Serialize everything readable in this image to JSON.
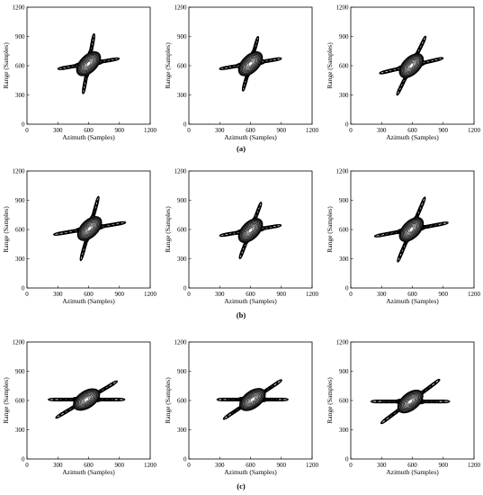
{
  "figure": {
    "row_labels": [
      "(a)",
      "(b)",
      "(c)"
    ]
  },
  "chart_data": [
    {
      "panel": "a1",
      "type": "contour",
      "xlabel": "Azimuth (Samples)",
      "ylabel": "Range (Samples)",
      "xlim": [
        0,
        1200
      ],
      "ylim": [
        0,
        1200
      ],
      "xticks": [
        0,
        300,
        600,
        900,
        1200
      ],
      "yticks": [
        0,
        300,
        600,
        900,
        1200
      ],
      "center": [
        600,
        620
      ],
      "peak_orientations_deg": [
        10,
        80
      ],
      "peak_lengths": [
        470,
        480
      ],
      "sidelobe_extent_pairs": [
        [
          210,
          30
        ]
      ]
    },
    {
      "panel": "a2",
      "type": "contour",
      "xlabel": "Azimuth (Samples)",
      "ylabel": "Range (Samples)",
      "xlim": [
        0,
        1200
      ],
      "ylim": [
        0,
        1200
      ],
      "xticks": [
        0,
        300,
        600,
        900,
        1200
      ],
      "yticks": [
        0,
        300,
        600,
        900,
        1200
      ],
      "center": [
        600,
        620
      ],
      "peak_orientations_deg": [
        10,
        75
      ],
      "peak_lengths": [
        480,
        440
      ],
      "sidelobe_extent_pairs": [
        [
          200,
          30
        ]
      ]
    },
    {
      "panel": "a3",
      "type": "contour",
      "xlabel": "Azimuth (Samples)",
      "ylabel": "Range (Samples)",
      "xlim": [
        0,
        1200
      ],
      "ylim": [
        0,
        1200
      ],
      "xticks": [
        0,
        300,
        600,
        900,
        1200
      ],
      "yticks": [
        0,
        300,
        600,
        900,
        1200
      ],
      "center": [
        590,
        600
      ],
      "peak_orientations_deg": [
        14,
        65
      ],
      "peak_lengths": [
        500,
        520
      ],
      "sidelobe_extent_pairs": [
        [
          220,
          30
        ]
      ]
    },
    {
      "panel": "b1",
      "type": "contour",
      "xlabel": "Azimuth (Samples)",
      "ylabel": "Range (Samples)",
      "xlim": [
        0,
        1200
      ],
      "ylim": [
        0,
        1200
      ],
      "xticks": [
        0,
        300,
        600,
        900,
        1200
      ],
      "yticks": [
        0,
        300,
        600,
        900,
        1200
      ],
      "center": [
        610,
        610
      ],
      "peak_orientations_deg": [
        10,
        75
      ],
      "peak_lengths": [
        560,
        520
      ],
      "sidelobe_extent_pairs": [
        [
          260,
          40
        ]
      ]
    },
    {
      "panel": "b2",
      "type": "contour",
      "xlabel": "Azimuth (Samples)",
      "ylabel": "Range (Samples)",
      "xlim": [
        0,
        1200
      ],
      "ylim": [
        0,
        1200
      ],
      "xticks": [
        0,
        300,
        600,
        900,
        1200
      ],
      "yticks": [
        0,
        300,
        600,
        900,
        1200
      ],
      "center": [
        600,
        590
      ],
      "peak_orientations_deg": [
        10,
        70
      ],
      "peak_lengths": [
        480,
        480
      ],
      "sidelobe_extent_pairs": [
        [
          190,
          30
        ]
      ]
    },
    {
      "panel": "b3",
      "type": "contour",
      "xlabel": "Azimuth (Samples)",
      "ylabel": "Range (Samples)",
      "xlim": [
        0,
        1200
      ],
      "ylim": [
        0,
        1200
      ],
      "xticks": [
        0,
        300,
        600,
        900,
        1200
      ],
      "yticks": [
        0,
        300,
        600,
        900,
        1200
      ],
      "center": [
        590,
        600
      ],
      "peak_orientations_deg": [
        11,
        68
      ],
      "peak_lengths": [
        580,
        560
      ],
      "sidelobe_extent_pairs": [
        [
          250,
          40
        ]
      ]
    },
    {
      "panel": "c1",
      "type": "contour",
      "xlabel": "Azimuth (Samples)",
      "ylabel": "Range (Samples)",
      "xlim": [
        0,
        1200
      ],
      "ylim": [
        0,
        1200
      ],
      "xticks": [
        0,
        300,
        600,
        900,
        1200
      ],
      "yticks": [
        0,
        300,
        600,
        900,
        1200
      ],
      "center": [
        580,
        610
      ],
      "peak_orientations_deg": [
        0,
        32
      ],
      "peak_lengths": [
        600,
        560
      ],
      "sidelobe_extent_pairs": [
        [
          240,
          40
        ]
      ]
    },
    {
      "panel": "c2",
      "type": "contour",
      "xlabel": "Azimuth (Samples)",
      "ylabel": "Range (Samples)",
      "xlim": [
        0,
        1200
      ],
      "ylim": [
        0,
        1200
      ],
      "xticks": [
        0,
        300,
        600,
        900,
        1200
      ],
      "yticks": [
        0,
        300,
        600,
        900,
        1200
      ],
      "center": [
        620,
        610
      ],
      "peak_orientations_deg": [
        0,
        35
      ],
      "peak_lengths": [
        560,
        560
      ],
      "sidelobe_extent_pairs": [
        [
          200,
          35
        ]
      ]
    },
    {
      "panel": "c3",
      "type": "contour",
      "xlabel": "Azimuth (Samples)",
      "ylabel": "Range (Samples)",
      "xlim": [
        0,
        1200
      ],
      "ylim": [
        0,
        1200
      ],
      "xticks": [
        0,
        300,
        600,
        900,
        1200
      ],
      "yticks": [
        0,
        300,
        600,
        900,
        1200
      ],
      "center": [
        580,
        590
      ],
      "peak_orientations_deg": [
        0,
        38
      ],
      "peak_lengths": [
        620,
        580
      ],
      "sidelobe_extent_pairs": [
        [
          240,
          40
        ]
      ]
    }
  ]
}
